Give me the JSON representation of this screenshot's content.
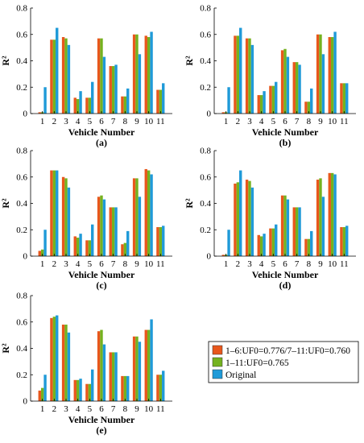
{
  "figure": {
    "legend": [
      {
        "label": "1–6:UF0=0.776/7–11:UF0=0.760",
        "color": "#e8571c"
      },
      {
        "label": "1–11:UF0=0.765",
        "color": "#74b21f"
      },
      {
        "label": "Original",
        "color": "#1f9ad8"
      }
    ]
  },
  "chart_data": [
    {
      "type": "bar",
      "panel_label": "(a)",
      "xlabel": "Vehicle Number",
      "ylabel": "R²",
      "categories": [
        "1",
        "2",
        "3",
        "4",
        "5",
        "6",
        "7",
        "8",
        "9",
        "10",
        "11"
      ],
      "ylim": [
        0,
        0.8
      ],
      "yticks": [
        0,
        0.2,
        0.4,
        0.6,
        0.8
      ],
      "series": [
        {
          "name": "1–6:UF0=0.776/7–11:UF0=0.760",
          "values": [
            0.01,
            0.56,
            0.58,
            0.12,
            0.12,
            0.57,
            0.36,
            0.13,
            0.6,
            0.59,
            0.18
          ]
        },
        {
          "name": "1–11:UF0=0.765",
          "values": [
            0.01,
            0.56,
            0.57,
            0.11,
            0.12,
            0.57,
            0.36,
            0.13,
            0.6,
            0.58,
            0.18
          ]
        },
        {
          "name": "Original",
          "values": [
            0.2,
            0.65,
            0.52,
            0.17,
            0.24,
            0.43,
            0.37,
            0.19,
            0.45,
            0.62,
            0.23
          ]
        }
      ]
    },
    {
      "type": "bar",
      "panel_label": "(b)",
      "xlabel": "Vehicle Number",
      "ylabel": "R²",
      "categories": [
        "1",
        "2",
        "3",
        "4",
        "5",
        "6",
        "7",
        "8",
        "9",
        "10",
        "11"
      ],
      "ylim": [
        0,
        0.8
      ],
      "yticks": [
        0,
        0.2,
        0.4,
        0.6,
        0.8
      ],
      "series": [
        {
          "name": "1–6:UF0=0.776/7–11:UF0=0.760",
          "values": [
            0.01,
            0.59,
            0.57,
            0.14,
            0.21,
            0.48,
            0.39,
            0.09,
            0.6,
            0.58,
            0.23
          ]
        },
        {
          "name": "1–11:UF0=0.765",
          "values": [
            0.01,
            0.59,
            0.57,
            0.14,
            0.21,
            0.49,
            0.39,
            0.09,
            0.6,
            0.58,
            0.23
          ]
        },
        {
          "name": "Original",
          "values": [
            0.2,
            0.65,
            0.52,
            0.17,
            0.24,
            0.43,
            0.37,
            0.19,
            0.45,
            0.62,
            0.23
          ]
        }
      ]
    },
    {
      "type": "bar",
      "panel_label": "(c)",
      "xlabel": "Vehicle Number",
      "ylabel": "R²",
      "categories": [
        "1",
        "2",
        "3",
        "4",
        "5",
        "6",
        "7",
        "8",
        "9",
        "10",
        "11"
      ],
      "ylim": [
        0,
        0.8
      ],
      "yticks": [
        0,
        0.2,
        0.4,
        0.6,
        0.8
      ],
      "series": [
        {
          "name": "1–6:UF0=0.776/7–11:UF0=0.760",
          "values": [
            0.04,
            0.65,
            0.6,
            0.15,
            0.12,
            0.45,
            0.37,
            0.09,
            0.59,
            0.66,
            0.22
          ]
        },
        {
          "name": "1–11:UF0=0.765",
          "values": [
            0.05,
            0.65,
            0.59,
            0.14,
            0.12,
            0.46,
            0.37,
            0.1,
            0.59,
            0.65,
            0.22
          ]
        },
        {
          "name": "Original",
          "values": [
            0.2,
            0.65,
            0.52,
            0.17,
            0.24,
            0.43,
            0.37,
            0.19,
            0.45,
            0.62,
            0.23
          ]
        }
      ]
    },
    {
      "type": "bar",
      "panel_label": "(d)",
      "xlabel": "Vehicle Number",
      "ylabel": "R²",
      "categories": [
        "1",
        "2",
        "3",
        "4",
        "5",
        "6",
        "7",
        "8",
        "9",
        "10",
        "11"
      ],
      "ylim": [
        0,
        0.8
      ],
      "yticks": [
        0,
        0.2,
        0.4,
        0.6,
        0.8
      ],
      "series": [
        {
          "name": "1–6:UF0=0.776/7–11:UF0=0.760",
          "values": [
            0.01,
            0.55,
            0.58,
            0.16,
            0.21,
            0.46,
            0.37,
            0.13,
            0.58,
            0.63,
            0.22
          ]
        },
        {
          "name": "1–11:UF0=0.765",
          "values": [
            0.01,
            0.56,
            0.57,
            0.15,
            0.21,
            0.46,
            0.37,
            0.13,
            0.59,
            0.63,
            0.22
          ]
        },
        {
          "name": "Original",
          "values": [
            0.2,
            0.65,
            0.52,
            0.17,
            0.24,
            0.43,
            0.37,
            0.19,
            0.45,
            0.62,
            0.23
          ]
        }
      ]
    },
    {
      "type": "bar",
      "panel_label": "(e)",
      "xlabel": "Vehicle Number",
      "ylabel": "R²",
      "categories": [
        "1",
        "2",
        "3",
        "4",
        "5",
        "6",
        "7",
        "8",
        "9",
        "10",
        "11"
      ],
      "ylim": [
        0,
        0.8
      ],
      "yticks": [
        0,
        0.2,
        0.4,
        0.6,
        0.8
      ],
      "series": [
        {
          "name": "1–6:UF0=0.776/7–11:UF0=0.760",
          "values": [
            0.08,
            0.63,
            0.58,
            0.16,
            0.13,
            0.53,
            0.37,
            0.19,
            0.49,
            0.54,
            0.2
          ]
        },
        {
          "name": "1–11:UF0=0.765",
          "values": [
            0.1,
            0.64,
            0.58,
            0.16,
            0.13,
            0.54,
            0.37,
            0.19,
            0.49,
            0.54,
            0.2
          ]
        },
        {
          "name": "Original",
          "values": [
            0.2,
            0.65,
            0.52,
            0.17,
            0.24,
            0.43,
            0.37,
            0.19,
            0.45,
            0.62,
            0.23
          ]
        }
      ]
    }
  ]
}
